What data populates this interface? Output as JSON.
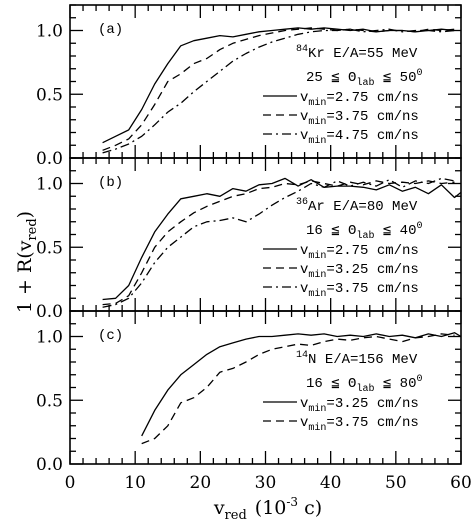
{
  "chart_data": {
    "type": "line",
    "figure": {
      "ylabel_main": "1 + R(v",
      "ylabel_sub": "red",
      "ylabel_close": ")",
      "xlabel_main": "v",
      "xlabel_sub": "red",
      "xlabel_units": "(10",
      "xlabel_exp": "-3",
      "xlabel_close": " c)",
      "xlim": [
        0,
        60
      ],
      "xticks": [
        0,
        10,
        20,
        30,
        40,
        50,
        60
      ],
      "ylim": [
        0,
        1.2
      ],
      "yticks": [
        0.0,
        0.5,
        1.0
      ],
      "ytick_labels": [
        "0.0",
        "0.5",
        "1.0"
      ],
      "grid": false
    },
    "panels": [
      {
        "label": "(a)",
        "nucleus_mass": "84",
        "nucleus": "Kr",
        "energy": "E/A=55 MeV",
        "angle_low": "25 ≦ Θ",
        "angle_sub": "lab",
        "angle_high": " ≦ 50",
        "angle_deg": "0",
        "series": [
          {
            "name": "v_min=2.75 cm/ns",
            "v_text": "v",
            "v_sub": "min",
            "value_text": "=2.75 cm/ns",
            "style": "solid",
            "x": [
              5,
              7,
              9,
              11,
              13,
              15,
              17,
              19,
              21,
              23,
              25,
              27,
              29,
              31,
              33,
              35,
              37,
              39,
              41,
              43,
              45,
              47,
              49,
              51,
              53,
              55,
              57,
              59
            ],
            "y": [
              0.12,
              0.17,
              0.22,
              0.38,
              0.58,
              0.74,
              0.88,
              0.92,
              0.94,
              0.96,
              0.95,
              0.97,
              0.99,
              1.0,
              1.01,
              1.02,
              1.01,
              1.02,
              1.01,
              1.0,
              1.01,
              0.99,
              1.0,
              1.0,
              0.99,
              1.0,
              1.01,
              1.0
            ]
          },
          {
            "name": "v_min=3.75 cm/ns",
            "v_text": "v",
            "v_sub": "min",
            "value_text": "=3.75 cm/ns",
            "style": "dashed",
            "x": [
              5,
              7,
              9,
              11,
              13,
              15,
              17,
              19,
              21,
              23,
              25,
              27,
              29,
              31,
              33,
              35,
              37,
              39,
              41,
              43,
              45,
              47,
              49,
              51,
              53,
              55,
              57,
              59
            ],
            "y": [
              0.06,
              0.1,
              0.15,
              0.26,
              0.42,
              0.6,
              0.66,
              0.74,
              0.78,
              0.85,
              0.9,
              0.93,
              0.96,
              0.98,
              1.0,
              1.01,
              1.02,
              1.01,
              1.0,
              1.01,
              1.0,
              0.99,
              1.0,
              1.0,
              0.99,
              1.01,
              1.0,
              1.01
            ]
          },
          {
            "name": "v_min=4.75 cm/ns",
            "v_text": "v",
            "v_sub": "min",
            "value_text": "=4.75 cm/ns",
            "style": "dashdot",
            "x": [
              5,
              7,
              9,
              11,
              13,
              15,
              17,
              19,
              21,
              23,
              25,
              27,
              29,
              31,
              33,
              35,
              37,
              39,
              41,
              43,
              45,
              47,
              49,
              51,
              53,
              55,
              57,
              59
            ],
            "y": [
              0.04,
              0.07,
              0.11,
              0.17,
              0.26,
              0.36,
              0.43,
              0.52,
              0.6,
              0.68,
              0.76,
              0.82,
              0.87,
              0.91,
              0.94,
              0.97,
              0.99,
              1.0,
              1.0,
              1.01,
              0.99,
              1.0,
              1.01,
              0.99,
              1.0,
              1.0,
              0.99,
              1.0
            ]
          }
        ]
      },
      {
        "label": "(b)",
        "nucleus_mass": "36",
        "nucleus": "Ar",
        "energy": "E/A=80 MeV",
        "angle_low": "16 ≦ Θ",
        "angle_sub": "lab",
        "angle_high": " ≦ 40",
        "angle_deg": "0",
        "series": [
          {
            "name": "v_min=2.75 cm/ns",
            "v_text": "v",
            "v_sub": "min",
            "value_text": "=2.75 cm/ns",
            "style": "solid",
            "x": [
              5,
              7,
              9,
              11,
              13,
              15,
              17,
              19,
              21,
              23,
              25,
              27,
              29,
              31,
              33,
              35,
              37,
              39,
              41,
              43,
              45,
              47,
              49,
              51,
              53,
              55,
              57,
              59,
              60
            ],
            "y": [
              0.09,
              0.1,
              0.2,
              0.42,
              0.62,
              0.76,
              0.88,
              0.9,
              0.92,
              0.9,
              0.96,
              0.94,
              0.99,
              1.0,
              1.04,
              0.98,
              1.03,
              0.97,
              0.98,
              0.98,
              0.97,
              0.95,
              0.99,
              0.94,
              0.97,
              0.92,
              0.99,
              0.89,
              0.93
            ]
          },
          {
            "name": "v_min=3.25 cm/ns",
            "v_text": "v",
            "v_sub": "min",
            "value_text": "=3.25 cm/ns",
            "style": "dashed",
            "x": [
              5,
              7,
              9,
              11,
              13,
              15,
              17,
              19,
              21,
              23,
              25,
              27,
              29,
              31,
              33,
              35,
              37,
              39,
              41,
              43,
              45,
              47,
              49,
              51,
              53,
              55,
              57,
              59
            ],
            "y": [
              0.05,
              0.06,
              0.12,
              0.3,
              0.5,
              0.62,
              0.7,
              0.77,
              0.82,
              0.86,
              0.9,
              0.92,
              0.96,
              0.97,
              1.0,
              0.99,
              1.02,
              1.0,
              0.98,
              1.01,
              0.99,
              1.02,
              1.0,
              1.01,
              1.0,
              1.02,
              1.0,
              1.01
            ]
          },
          {
            "name": "v_min=3.75 cm/ns",
            "v_text": "v",
            "v_sub": "min",
            "value_text": "=3.75 cm/ns",
            "style": "dashdot",
            "x": [
              5,
              7,
              9,
              11,
              13,
              15,
              17,
              19,
              21,
              23,
              25,
              27,
              29,
              31,
              33,
              35,
              37,
              39,
              41,
              43,
              45,
              47,
              49,
              51,
              53,
              55,
              57,
              59
            ],
            "y": [
              0.03,
              0.05,
              0.1,
              0.22,
              0.38,
              0.5,
              0.58,
              0.66,
              0.7,
              0.71,
              0.73,
              0.7,
              0.76,
              0.83,
              0.89,
              0.94,
              1.0,
              0.97,
              1.02,
              0.98,
              1.01,
              0.98,
              1.03,
              0.97,
              1.02,
              1.0,
              1.04,
              1.02
            ]
          }
        ]
      },
      {
        "label": "(c)",
        "nucleus_mass": "14",
        "nucleus": "N",
        "energy": "E/A=156 MeV",
        "angle_low": "16 ≦ Θ",
        "angle_sub": "lab",
        "angle_high": " ≦ 80",
        "angle_deg": "0",
        "series": [
          {
            "name": "v_min=3.25 cm/ns",
            "v_text": "v",
            "v_sub": "min",
            "value_text": "=3.25 cm/ns",
            "style": "solid",
            "x": [
              11,
              13,
              15,
              17,
              19,
              21,
              23,
              25,
              27,
              29,
              31,
              33,
              35,
              37,
              39,
              41,
              43,
              45,
              47,
              49,
              51,
              53,
              55,
              57,
              59,
              60
            ],
            "y": [
              0.22,
              0.42,
              0.58,
              0.7,
              0.78,
              0.86,
              0.92,
              0.95,
              0.98,
              1.0,
              1.0,
              1.01,
              1.02,
              1.01,
              1.02,
              1.0,
              1.01,
              1.0,
              1.02,
              1.0,
              1.01,
              0.99,
              1.02,
              1.0,
              1.03,
              1.0
            ]
          },
          {
            "name": "v_min=3.75 cm/ns",
            "v_text": "v",
            "v_sub": "min",
            "value_text": "=3.75 cm/ns",
            "style": "dashed",
            "x": [
              11,
              13,
              15,
              17,
              19,
              21,
              23,
              25,
              27,
              29,
              31,
              33,
              35,
              37,
              39,
              41,
              43,
              45,
              47,
              49,
              51,
              53,
              55,
              57,
              59
            ],
            "y": [
              0.16,
              0.2,
              0.3,
              0.48,
              0.52,
              0.6,
              0.72,
              0.75,
              0.8,
              0.86,
              0.9,
              0.92,
              0.94,
              0.93,
              0.96,
              0.98,
              0.97,
              0.99,
              1.0,
              0.98,
              0.96,
              0.99,
              1.0,
              1.02,
              1.01
            ]
          }
        ]
      }
    ]
  }
}
